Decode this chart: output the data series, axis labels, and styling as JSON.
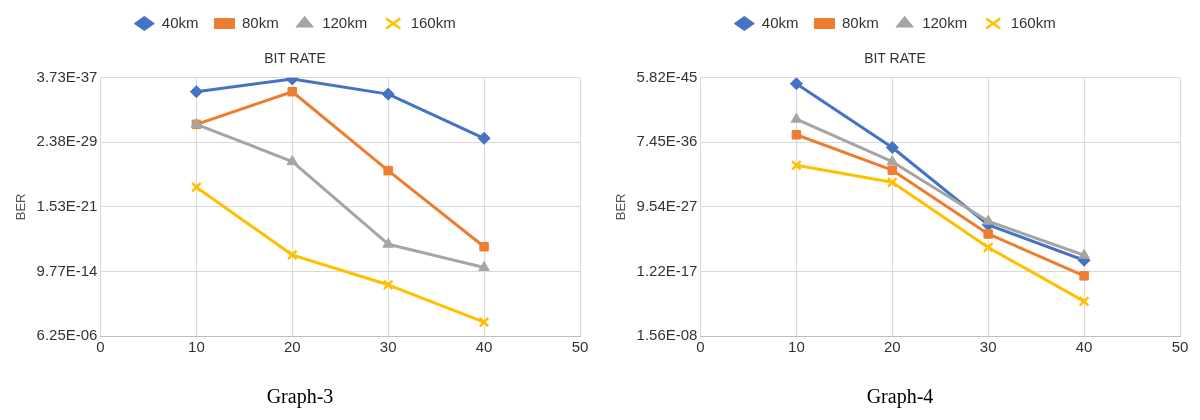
{
  "chart_data": [
    {
      "type": "line",
      "title": "BIT RATE",
      "ylabel": "BER",
      "x": [
        10,
        20,
        30,
        40
      ],
      "xlim": [
        0,
        50
      ],
      "xticks": [
        0,
        10,
        20,
        30,
        40,
        50
      ],
      "log": "y",
      "ylim": [
        6.25e-06,
        3.73e-37
      ],
      "yticks": [
        {
          "value": 3.73e-37,
          "label": "3.73E-37"
        },
        {
          "value": 2.38e-29,
          "label": "2.38E-29"
        },
        {
          "value": 1.53e-21,
          "label": "1.53E-21"
        },
        {
          "value": 9.77e-14,
          "label": "9.77E-14"
        },
        {
          "value": 6.25e-06,
          "label": "6.25E-06"
        }
      ],
      "grid": true,
      "legend": "top",
      "annotations": [
        "Graph-3"
      ],
      "series": [
        {
          "name": "40km",
          "color": "#4472c4",
          "marker": "diamond",
          "values": [
            1.8e-35,
            5.1e-37,
            3.5e-35,
            7.8e-30
          ]
        },
        {
          "name": "80km",
          "color": "#ed7d31",
          "marker": "square",
          "values": [
            1.6e-31,
            1.8e-35,
            6.3e-26,
            1e-16
          ]
        },
        {
          "name": "120km",
          "color": "#a5a5a5",
          "marker": "triangle",
          "values": [
            1.6e-31,
            5e-27,
            5e-17,
            3.2e-14
          ]
        },
        {
          "name": "160km",
          "color": "#ffc000",
          "marker": "cross",
          "values": [
            6.3e-24,
            1e-15,
            4e-12,
            1.3e-07
          ]
        }
      ]
    },
    {
      "type": "line",
      "title": "BIT RATE",
      "ylabel": "BER",
      "x": [
        10,
        20,
        30,
        40
      ],
      "xlim": [
        0,
        50
      ],
      "xticks": [
        0,
        10,
        20,
        30,
        40,
        50
      ],
      "log": "y",
      "ylim": [
        1.56e-08,
        5.82e-45
      ],
      "yticks": [
        {
          "value": 5.82e-45,
          "label": "5.82E-45"
        },
        {
          "value": 7.45e-36,
          "label": "7.45E-36"
        },
        {
          "value": 9.54e-27,
          "label": "9.54E-27"
        },
        {
          "value": 1.22e-17,
          "label": "1.22E-17"
        },
        {
          "value": 1.56e-08,
          "label": "1.56E-08"
        }
      ],
      "grid": true,
      "legend": "top",
      "annotations": [
        "Graph-4"
      ],
      "series": [
        {
          "name": "40km",
          "color": "#4472c4",
          "marker": "diamond",
          "values": [
            4e-44,
            4e-35,
            3.2e-24,
            3.2e-19
          ]
        },
        {
          "name": "80km",
          "color": "#ed7d31",
          "marker": "square",
          "values": [
            6.3e-37,
            6.3e-32,
            6.3e-23,
            5e-17
          ]
        },
        {
          "name": "120km",
          "color": "#a5a5a5",
          "marker": "triangle",
          "values": [
            4e-39,
            4e-33,
            1e-24,
            6.3e-20
          ]
        },
        {
          "name": "160km",
          "color": "#ffc000",
          "marker": "cross",
          "values": [
            1.3e-32,
            3.2e-30,
            5e-21,
            2e-13
          ]
        }
      ]
    }
  ]
}
